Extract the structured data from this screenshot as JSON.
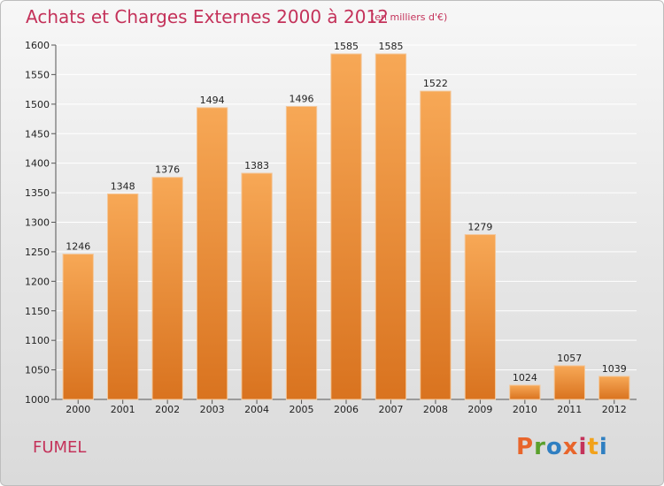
{
  "title": "Achats et Charges Externes 2000 à 2012",
  "subtitle": "(en milliers d'€)",
  "commune": "FUMEL",
  "logo": {
    "text": "Proxiti",
    "colors": [
      "#e8652b",
      "#5aa02c",
      "#2f7fc1",
      "#e8652b",
      "#c4325a",
      "#f2a21b",
      "#2f7fc1"
    ]
  },
  "colors": {
    "title": "#c4325a",
    "bar_light": "#f7a856",
    "bar_dark": "#d9731f",
    "grid": "#ffffff"
  },
  "chart_data": {
    "type": "bar",
    "categories": [
      "2000",
      "2001",
      "2002",
      "2003",
      "2004",
      "2005",
      "2006",
      "2007",
      "2008",
      "2009",
      "2010",
      "2011",
      "2012"
    ],
    "values": [
      1246,
      1348,
      1376,
      1494,
      1383,
      1496,
      1585,
      1585,
      1522,
      1279,
      1024,
      1057,
      1039
    ],
    "ylim": [
      1000,
      1600
    ],
    "yticks": [
      1000,
      1050,
      1100,
      1150,
      1200,
      1250,
      1300,
      1350,
      1400,
      1450,
      1500,
      1550,
      1600
    ],
    "grid": true,
    "legend": "none"
  }
}
